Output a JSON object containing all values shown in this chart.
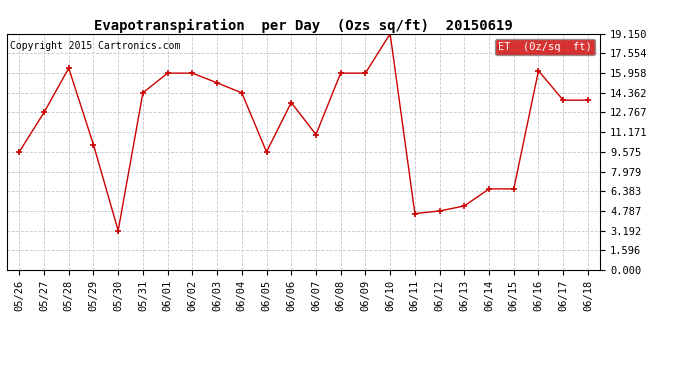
{
  "title": "Evapotranspiration  per Day  (Ozs sq/ft)  20150619",
  "copyright": "Copyright 2015 Cartronics.com",
  "legend_label": "ET  (0z/sq  ft)",
  "x_labels": [
    "05/26",
    "05/27",
    "05/28",
    "05/29",
    "05/30",
    "05/31",
    "06/01",
    "06/02",
    "06/03",
    "06/04",
    "06/05",
    "06/06",
    "06/07",
    "06/08",
    "06/09",
    "06/10",
    "06/11",
    "06/12",
    "06/13",
    "06/14",
    "06/15",
    "06/16",
    "06/17",
    "06/18"
  ],
  "y_values": [
    9.575,
    12.767,
    16.362,
    10.171,
    3.192,
    14.362,
    15.958,
    15.958,
    15.171,
    14.362,
    9.575,
    13.575,
    10.979,
    15.958,
    15.958,
    19.15,
    4.575,
    4.787,
    5.192,
    6.575,
    6.575,
    16.15,
    13.767,
    13.767
  ],
  "y_ticks": [
    0.0,
    1.596,
    3.192,
    4.787,
    6.383,
    7.979,
    9.575,
    11.171,
    12.767,
    14.362,
    15.958,
    17.554,
    19.15
  ],
  "line_color": "#cc0000",
  "marker_color": "#cc0000",
  "bg_color": "#ffffff",
  "plot_bg_color": "#ffffff",
  "grid_color": "#c8c8c8",
  "legend_bg_color": "#cc0000",
  "legend_text_color": "#ffffff",
  "title_fontsize": 10,
  "copyright_fontsize": 7,
  "tick_fontsize": 7.5,
  "legend_fontsize": 7.5,
  "ylim": [
    0.0,
    19.15
  ],
  "xlim_min": -0.5,
  "xlim_max": 23.5
}
